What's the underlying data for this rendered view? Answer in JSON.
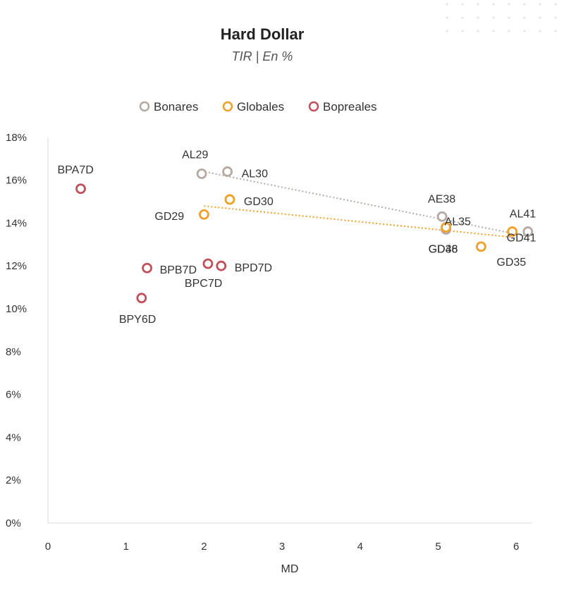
{
  "chart_data": {
    "type": "scatter",
    "title": "Hard Dollar",
    "subtitle": "TIR | En %",
    "xlabel": "MD",
    "ylabel": "",
    "xlim": [
      0,
      6.2
    ],
    "ylim": [
      0,
      18
    ],
    "x_ticks": [
      "0",
      "1",
      "2",
      "3",
      "4",
      "5",
      "6"
    ],
    "y_ticks": [
      "0%",
      "2%",
      "4%",
      "6%",
      "8%",
      "10%",
      "12%",
      "14%",
      "16%",
      "18%"
    ],
    "legend_position": "top",
    "series": [
      {
        "name": "Bonares",
        "color": "#b3aaa3",
        "trendline": true,
        "points": [
          {
            "label": "AL29",
            "x": 1.97,
            "y": 16.3
          },
          {
            "label": "AL30",
            "x": 2.3,
            "y": 16.4
          },
          {
            "label": "AE38",
            "x": 5.05,
            "y": 14.3
          },
          {
            "label": "AL35",
            "x": 5.1,
            "y": 13.7
          },
          {
            "label": "AL41",
            "x": 6.15,
            "y": 13.6
          }
        ]
      },
      {
        "name": "Globales",
        "color": "#f0a028",
        "trendline": true,
        "points": [
          {
            "label": "GD29",
            "x": 2.0,
            "y": 14.4
          },
          {
            "label": "GD30",
            "x": 2.33,
            "y": 15.1
          },
          {
            "label": "GD38",
            "x": 5.1,
            "y": 13.8
          },
          {
            "label": "GD46",
            "x": 5.1,
            "y": 13.8
          },
          {
            "label": "GD35",
            "x": 5.55,
            "y": 12.9
          },
          {
            "label": "GD41",
            "x": 5.95,
            "y": 13.6
          }
        ]
      },
      {
        "name": "Bopreales",
        "color": "#c0505a",
        "trendline": false,
        "points": [
          {
            "label": "BPA7D",
            "x": 0.42,
            "y": 15.6
          },
          {
            "label": "BPB7D",
            "x": 1.27,
            "y": 11.9
          },
          {
            "label": "BPC7D",
            "x": 2.05,
            "y": 12.1
          },
          {
            "label": "BPD7D",
            "x": 2.22,
            "y": 12.0
          },
          {
            "label": "BPY6D",
            "x": 1.2,
            "y": 10.5
          }
        ]
      }
    ]
  }
}
